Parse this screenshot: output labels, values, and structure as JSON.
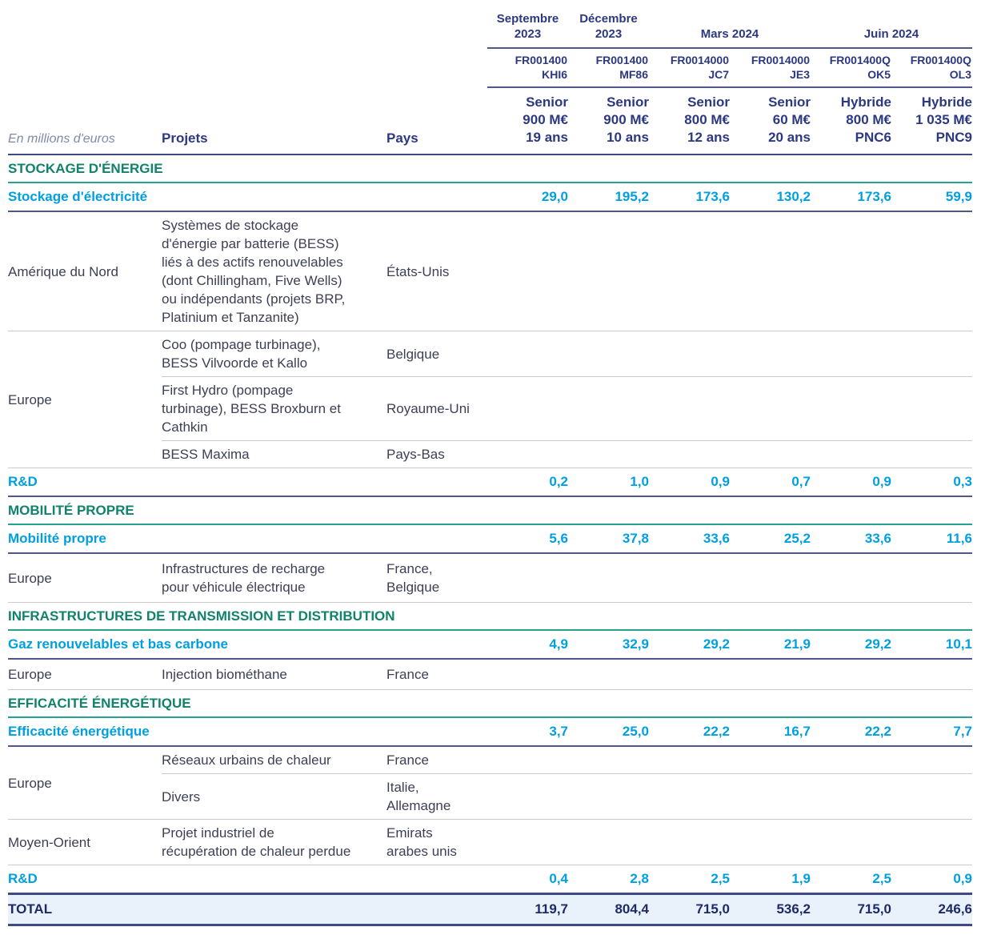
{
  "table": {
    "unit_label": "En millions d'euros",
    "projects_header": "Projets",
    "country_header": "Pays",
    "colors": {
      "header_navy": "#2c3880",
      "subsection_blue": "#009fe0",
      "section_green": "#11826b",
      "body_text": "#3d4054",
      "total_background": "#e9f2fa",
      "teal_rule": "#27a192",
      "navy_rule": "#4f5789"
    },
    "periods": [
      {
        "label": "Septembre 2023"
      },
      {
        "label": "Décembre 2023"
      },
      {
        "label": "Mars 2024"
      },
      {
        "label": "Juin 2024"
      }
    ],
    "bonds": [
      {
        "isin": [
          "FR001400",
          "KHI6"
        ],
        "type": "Senior",
        "amount": "900 M€",
        "term": "19 ans"
      },
      {
        "isin": [
          "FR001400",
          "MF86"
        ],
        "type": "Senior",
        "amount": "900 M€",
        "term": "10 ans"
      },
      {
        "isin": [
          "FR0014000",
          "JC7"
        ],
        "type": "Senior",
        "amount": "800 M€",
        "term": "12 ans"
      },
      {
        "isin": [
          "FR0014000",
          "JE3"
        ],
        "type": "Senior",
        "amount": "60 M€",
        "term": "20 ans"
      },
      {
        "isin": [
          "FR001400Q",
          "OK5"
        ],
        "type": "Hybride",
        "amount": "800 M€",
        "term": "PNC6"
      },
      {
        "isin": [
          "FR001400Q",
          "OL3"
        ],
        "type": "Hybride",
        "amount": "1 035 M€",
        "term": "PNC9"
      }
    ],
    "sections": [
      {
        "title": "STOCKAGE D'ÉNERGIE",
        "subsections": [
          {
            "label": "Stockage d'électricité",
            "values": [
              "29,0",
              "195,2",
              "173,6",
              "130,2",
              "173,6",
              "59,9"
            ],
            "groups": [
              {
                "region": "Amérique du Nord",
                "items": [
                  {
                    "project": "Systèmes de stockage d'énergie par batterie (BESS) liés à des actifs renouvelables (dont Chillingham, Five Wells) ou indépendants (projets BRP, Platinium et Tanzanite)",
                    "country": "États-Unis"
                  }
                ]
              },
              {
                "region": "Europe",
                "items": [
                  {
                    "project": "Coo (pompage turbinage), BESS Vilvoorde et Kallo",
                    "country": "Belgique"
                  },
                  {
                    "project": "First Hydro (pompage turbinage), BESS Broxburn et Cathkin",
                    "country": "Royaume-Uni"
                  },
                  {
                    "project": "BESS Maxima",
                    "country": "Pays-Bas"
                  }
                ]
              }
            ]
          },
          {
            "label": "R&D",
            "values": [
              "0,2",
              "1,0",
              "0,9",
              "0,7",
              "0,9",
              "0,3"
            ]
          }
        ]
      },
      {
        "title": "MOBILITÉ PROPRE",
        "subsections": [
          {
            "label": "Mobilité propre",
            "values": [
              "5,6",
              "37,8",
              "33,6",
              "25,2",
              "33,6",
              "11,6"
            ],
            "groups": [
              {
                "region": "Europe",
                "items": [
                  {
                    "project": "Infrastructures de recharge pour véhicule électrique",
                    "country": "France, Belgique"
                  }
                ]
              }
            ]
          }
        ]
      },
      {
        "title": "INFRASTRUCTURES DE TRANSMISSION ET DISTRIBUTION",
        "subsections": [
          {
            "label": "Gaz renouvelables et bas carbone",
            "values": [
              "4,9",
              "32,9",
              "29,2",
              "21,9",
              "29,2",
              "10,1"
            ],
            "groups": [
              {
                "region": "Europe",
                "items": [
                  {
                    "project": "Injection biométhane",
                    "country": "France"
                  }
                ]
              }
            ]
          }
        ]
      },
      {
        "title": "EFFICACITÉ ÉNERGÉTIQUE",
        "subsections": [
          {
            "label": "Efficacité énergétique",
            "values": [
              "3,7",
              "25,0",
              "22,2",
              "16,7",
              "22,2",
              "7,7"
            ],
            "groups": [
              {
                "region": "Europe",
                "items": [
                  {
                    "project": "Réseaux urbains de chaleur",
                    "country": "France"
                  },
                  {
                    "project": "Divers",
                    "country": "Italie, Allemagne"
                  }
                ]
              },
              {
                "region": "Moyen-Orient",
                "items": [
                  {
                    "project": "Projet industriel de récupération de chaleur perdue",
                    "country": "Emirats arabes unis"
                  }
                ]
              }
            ]
          },
          {
            "label": "R&D",
            "values": [
              "0,4",
              "2,8",
              "2,5",
              "1,9",
              "2,5",
              "0,9"
            ]
          }
        ]
      }
    ],
    "total": {
      "label": "TOTAL",
      "values": [
        "119,7",
        "804,4",
        "715,0",
        "536,2",
        "715,0",
        "246,6"
      ]
    }
  }
}
